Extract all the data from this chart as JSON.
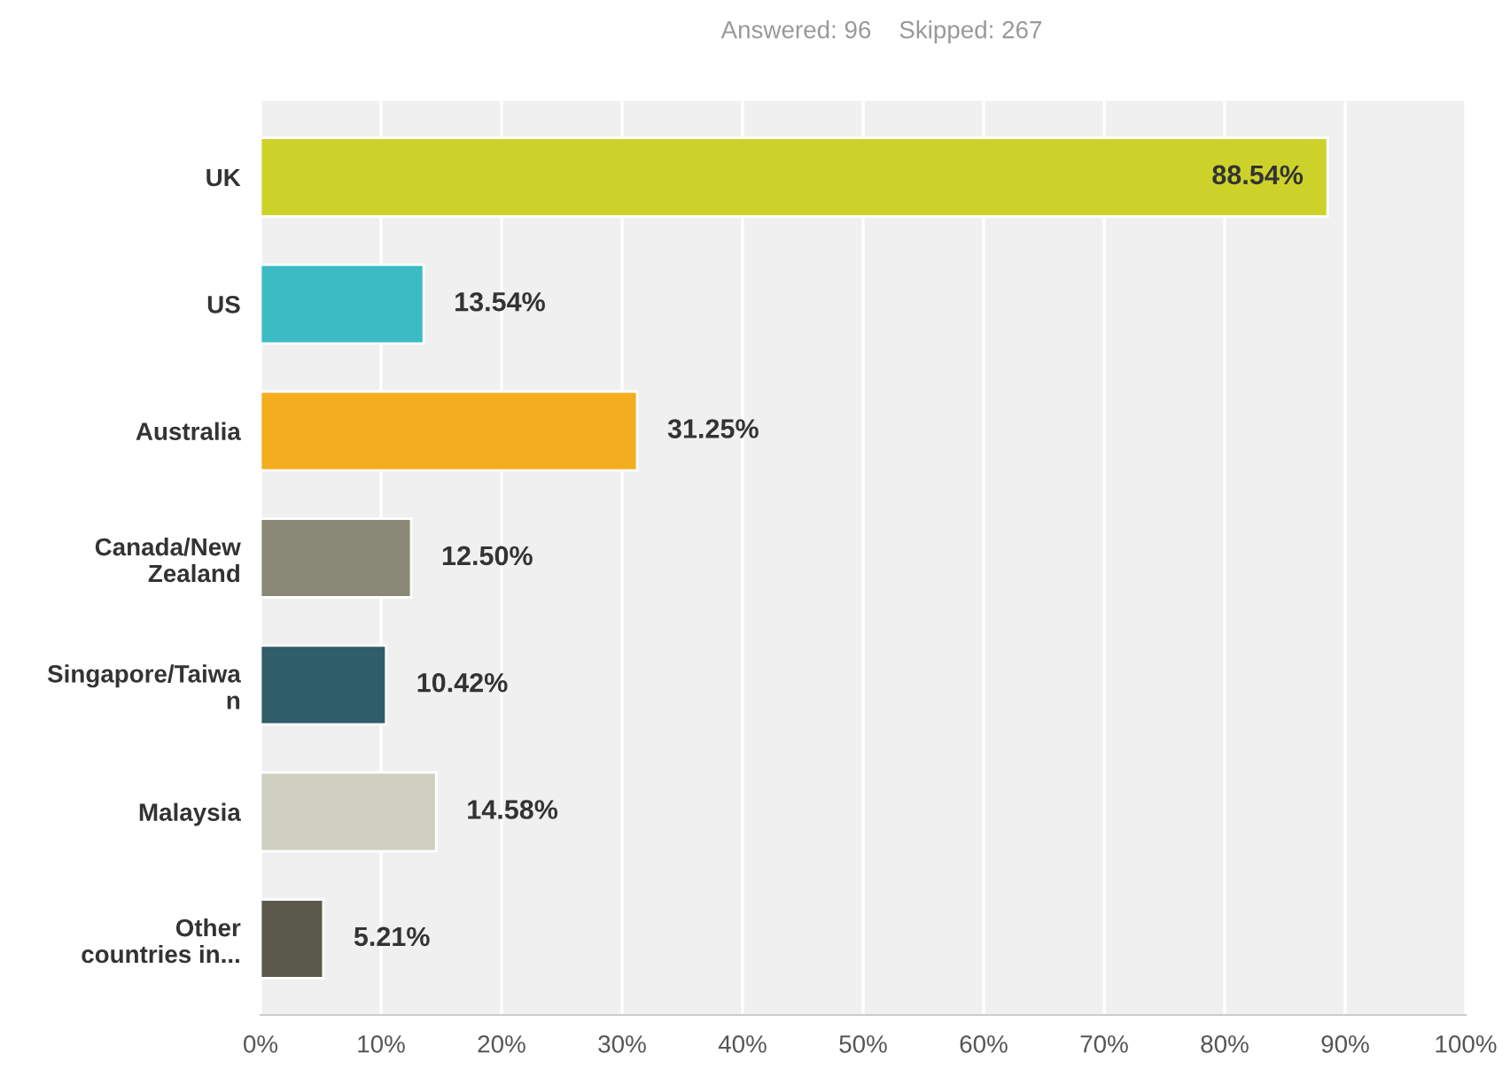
{
  "chart_data": {
    "type": "bar",
    "orientation": "horizontal",
    "title": "Answered: 96    Skipped: 267",
    "categories": [
      "UK",
      "US",
      "Australia",
      "Canada/New\nZealand",
      "Singapore/Taiwa\nn",
      "Malaysia",
      "Other\ncountries in..."
    ],
    "values": [
      88.54,
      13.54,
      31.25,
      12.5,
      10.42,
      14.58,
      5.21
    ],
    "colors": [
      "#cdd22a",
      "#3bbcc5",
      "#f4ad1f",
      "#8a8977",
      "#2f5d69",
      "#d0d0c1",
      "#5a594b"
    ],
    "value_labels": [
      "88.54%",
      "13.54%",
      "31.25%",
      "12.50%",
      "10.42%",
      "14.58%",
      "5.21%"
    ],
    "xlim": [
      0,
      100
    ],
    "xticks": [
      {
        "value": 0,
        "label": "0%"
      },
      {
        "value": 10,
        "label": "10%"
      },
      {
        "value": 20,
        "label": "20%"
      },
      {
        "value": 30,
        "label": "30%"
      },
      {
        "value": 40,
        "label": "40%"
      },
      {
        "value": 50,
        "label": "50%"
      },
      {
        "value": 60,
        "label": "60%"
      },
      {
        "value": 70,
        "label": "70%"
      },
      {
        "value": 80,
        "label": "80%"
      },
      {
        "value": 90,
        "label": "90%"
      },
      {
        "value": 100,
        "label": "100%"
      }
    ],
    "grid": "x"
  }
}
